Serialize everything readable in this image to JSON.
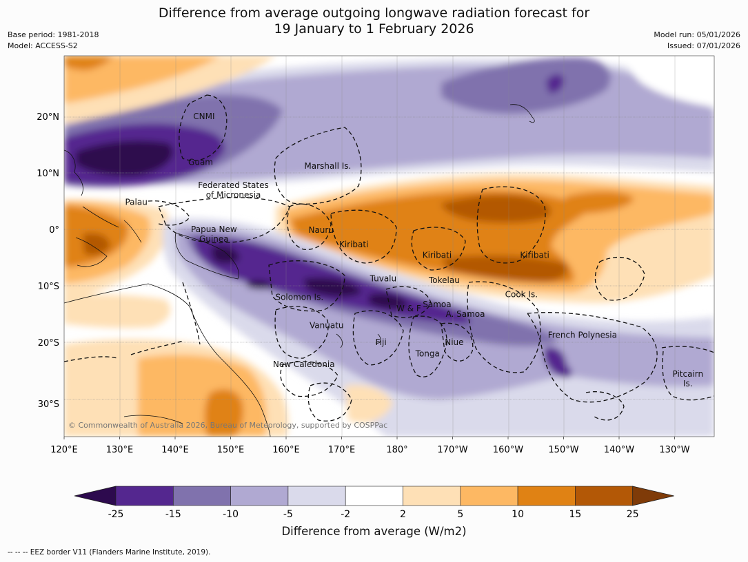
{
  "header": {
    "title_line1": "Difference from average outgoing longwave radiation forecast for",
    "title_line2": "19 January to 1 February 2026",
    "base_period": "Base period: 1981-2018",
    "model": "Model: ACCESS-S2",
    "model_run": "Model run: 05/01/2026",
    "issued": "Issued: 07/01/2026"
  },
  "map": {
    "lon_ticks": [
      "120°E",
      "130°E",
      "140°E",
      "150°E",
      "160°E",
      "170°E",
      "180°",
      "170°W",
      "160°W",
      "150°W",
      "140°W",
      "130°W"
    ],
    "lat_ticks": [
      "20°N",
      "10°N",
      "0°",
      "10°S",
      "20°S",
      "30°S"
    ],
    "copyright": "© Commonwealth of Australia 2026, Bureau of Meteorology, supported by COSPPac",
    "region_labels": [
      {
        "text": "CNMI",
        "lon": 145.2,
        "lat": 20.0
      },
      {
        "text": "Guam",
        "lon": 144.6,
        "lat": 11.9
      },
      {
        "text": "Marshall Is.",
        "lon": 167.5,
        "lat": 11.2
      },
      {
        "text": "Federated States",
        "lon": 150.5,
        "lat": 7.8
      },
      {
        "text": "of Micronesia",
        "lon": 150.5,
        "lat": 6.1
      },
      {
        "text": "Palau",
        "lon": 133.0,
        "lat": 4.8
      },
      {
        "text": "Papua New",
        "lon": 147.0,
        "lat": 0.0
      },
      {
        "text": "Guinea",
        "lon": 147.0,
        "lat": -1.7
      },
      {
        "text": "Nauru",
        "lon": 166.3,
        "lat": -0.1
      },
      {
        "text": "Kiribati",
        "lon": 172.2,
        "lat": -2.7
      },
      {
        "text": "Kiribati",
        "lon": -172.8,
        "lat": -4.6
      },
      {
        "text": "Kiribati",
        "lon": -155.2,
        "lat": -4.6
      },
      {
        "text": "Tuvalu",
        "lon": 177.5,
        "lat": -8.7
      },
      {
        "text": "Tokelau",
        "lon": -171.5,
        "lat": -9.0
      },
      {
        "text": "Cook Is.",
        "lon": -157.6,
        "lat": -11.5
      },
      {
        "text": "Solomon Is.",
        "lon": 162.4,
        "lat": -12.0
      },
      {
        "text": "Samoa",
        "lon": -172.8,
        "lat": -13.3
      },
      {
        "text": "W & F",
        "lon": -177.9,
        "lat": -14.0
      },
      {
        "text": "A. Samoa",
        "lon": -167.7,
        "lat": -15.0
      },
      {
        "text": "Vanuatu",
        "lon": 167.3,
        "lat": -17.0
      },
      {
        "text": "Fiji",
        "lon": 177.1,
        "lat": -20.0
      },
      {
        "text": "Niue",
        "lon": -169.7,
        "lat": -20.0
      },
      {
        "text": "French Polynesia",
        "lon": -146.6,
        "lat": -18.7
      },
      {
        "text": "Tonga",
        "lon": -174.5,
        "lat": -22.0
      },
      {
        "text": "New Caledonia",
        "lon": 163.2,
        "lat": -23.9
      },
      {
        "text": "Pitcairn",
        "lon": -127.6,
        "lat": -25.6
      },
      {
        "text": "Is.",
        "lon": -127.6,
        "lat": -27.3
      }
    ]
  },
  "colorbar": {
    "ticks": [
      "-25",
      "-15",
      "-10",
      "-5",
      "-2",
      "2",
      "5",
      "10",
      "15",
      "25"
    ],
    "colors": [
      "#54278f",
      "#8072ad",
      "#b0a9d2",
      "#dadaeb",
      "#ffffff",
      "#fee0b6",
      "#fdb863",
      "#e08214",
      "#b35806"
    ],
    "under_color": "#2d0a4e",
    "over_color": "#7f3b08",
    "label": "Difference from average (W/m2)"
  },
  "footer": {
    "eez_note": "--  --  -- EEZ border V11 (Flanders Marine Institute, 2019)."
  }
}
